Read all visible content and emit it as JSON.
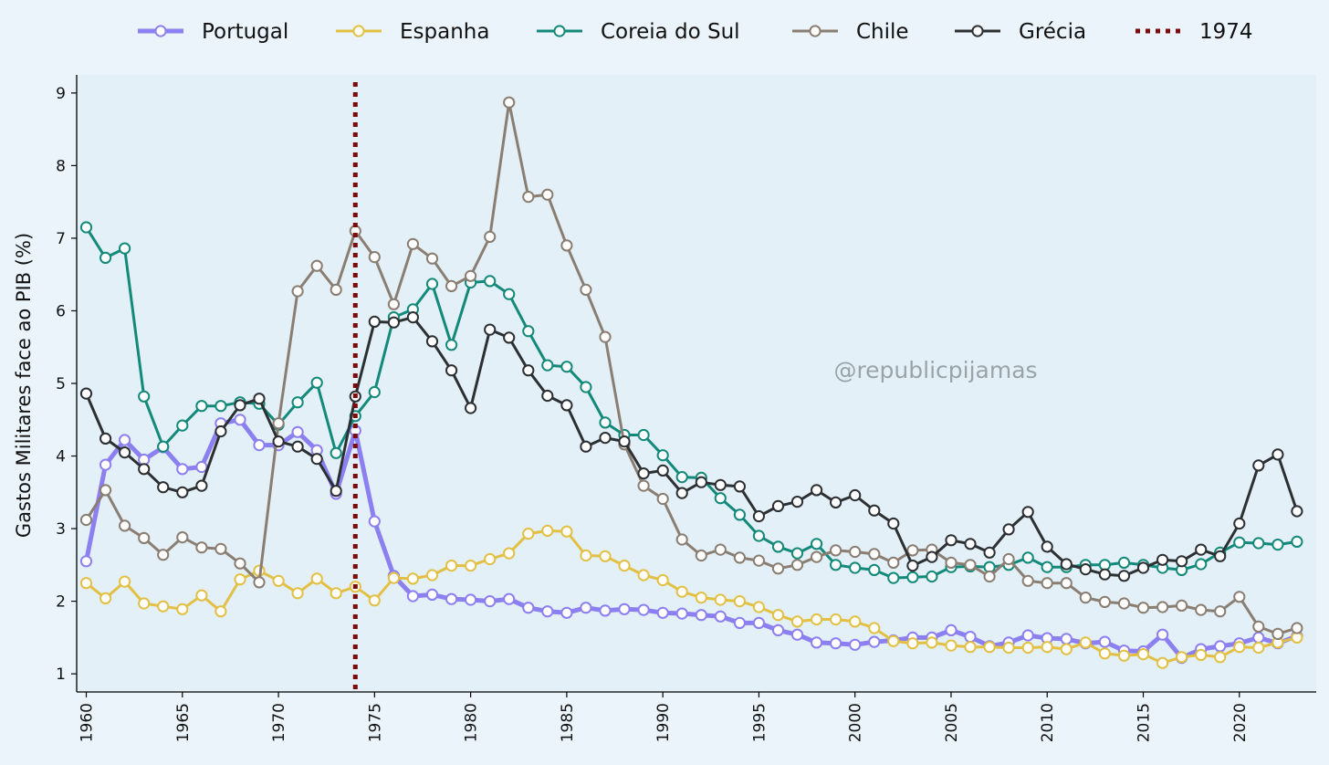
{
  "watermark": "@republicpijamas",
  "colors": {
    "page_background": "#ebf4fa",
    "plot_background": "#e3f0f8",
    "axis": "#000000",
    "reference_line": "#7a0c0c"
  },
  "chart_data": {
    "type": "line",
    "title": "",
    "xlabel": "",
    "ylabel": "Gastos Militares face ao PIB (%)",
    "xlim": [
      1959.5,
      2024
    ],
    "ylim": [
      0.75,
      9.25
    ],
    "x_ticks": [
      1960,
      1965,
      1970,
      1975,
      1980,
      1985,
      1990,
      1995,
      2000,
      2005,
      2010,
      2015,
      2020
    ],
    "y_ticks": [
      1,
      2,
      3,
      4,
      5,
      6,
      7,
      8,
      9
    ],
    "grid": false,
    "legend_position": "top-center",
    "x": [
      1960,
      1961,
      1962,
      1963,
      1964,
      1965,
      1966,
      1967,
      1968,
      1969,
      1970,
      1971,
      1972,
      1973,
      1974,
      1975,
      1976,
      1977,
      1978,
      1979,
      1980,
      1981,
      1982,
      1983,
      1984,
      1985,
      1986,
      1987,
      1988,
      1989,
      1990,
      1991,
      1992,
      1993,
      1994,
      1995,
      1996,
      1997,
      1998,
      1999,
      2000,
      2001,
      2002,
      2003,
      2004,
      2005,
      2006,
      2007,
      2008,
      2009,
      2010,
      2011,
      2012,
      2013,
      2014,
      2015,
      2016,
      2017,
      2018,
      2019,
      2020,
      2021,
      2022,
      2023
    ],
    "series": [
      {
        "name": "Portugal",
        "color": "#8c7ff0",
        "line_width": 5,
        "values": [
          2.55,
          3.88,
          4.22,
          3.95,
          4.12,
          3.82,
          3.85,
          4.45,
          4.5,
          4.15,
          4.15,
          4.33,
          4.08,
          3.48,
          4.35,
          3.1,
          2.35,
          2.07,
          2.09,
          2.03,
          2.02,
          2.0,
          2.03,
          1.91,
          1.86,
          1.84,
          1.91,
          1.87,
          1.89,
          1.88,
          1.84,
          1.83,
          1.81,
          1.79,
          1.7,
          1.7,
          1.6,
          1.54,
          1.43,
          1.42,
          1.4,
          1.44,
          1.46,
          1.5,
          1.5,
          1.6,
          1.51,
          1.38,
          1.43,
          1.53,
          1.49,
          1.48,
          1.42,
          1.44,
          1.32,
          1.31,
          1.54,
          1.22,
          1.34,
          1.38,
          1.42,
          1.5,
          1.42,
          1.52
        ]
      },
      {
        "name": "Espanha",
        "color": "#e2c044",
        "line_width": 3,
        "values": [
          2.25,
          2.04,
          2.27,
          1.97,
          1.93,
          1.89,
          2.08,
          1.86,
          2.3,
          2.42,
          2.28,
          2.11,
          2.31,
          2.11,
          2.2,
          2.01,
          2.32,
          2.31,
          2.36,
          2.49,
          2.49,
          2.58,
          2.66,
          2.93,
          2.97,
          2.96,
          2.63,
          2.62,
          2.49,
          2.36,
          2.29,
          2.13,
          2.05,
          2.02,
          2.0,
          1.92,
          1.81,
          1.72,
          1.75,
          1.75,
          1.72,
          1.63,
          1.45,
          1.42,
          1.43,
          1.39,
          1.37,
          1.37,
          1.36,
          1.36,
          1.37,
          1.34,
          1.43,
          1.28,
          1.25,
          1.27,
          1.15,
          1.23,
          1.26,
          1.23,
          1.37,
          1.36,
          1.43,
          1.5
        ]
      },
      {
        "name": "Coreia do Sul",
        "color": "#13897a",
        "line_width": 3,
        "values": [
          7.15,
          6.73,
          6.86,
          4.82,
          4.13,
          4.42,
          4.69,
          4.69,
          4.74,
          4.72,
          4.43,
          4.74,
          5.01,
          4.04,
          4.55,
          4.88,
          5.91,
          6.02,
          6.37,
          5.53,
          6.39,
          6.41,
          6.23,
          5.72,
          5.25,
          5.23,
          4.95,
          4.46,
          4.29,
          4.29,
          4.01,
          3.71,
          3.7,
          3.42,
          3.19,
          2.9,
          2.75,
          2.66,
          2.79,
          2.5,
          2.46,
          2.43,
          2.32,
          2.33,
          2.34,
          2.47,
          2.48,
          2.47,
          2.5,
          2.6,
          2.47,
          2.47,
          2.5,
          2.5,
          2.53,
          2.5,
          2.46,
          2.43,
          2.51,
          2.67,
          2.81,
          2.8,
          2.78,
          2.82
        ]
      },
      {
        "name": "Chile",
        "color": "#8a7e72",
        "line_width": 3,
        "values": [
          3.12,
          3.53,
          3.04,
          2.87,
          2.64,
          2.88,
          2.74,
          2.72,
          2.52,
          2.26,
          4.45,
          6.27,
          6.62,
          6.29,
          7.1,
          6.74,
          6.09,
          6.92,
          6.72,
          6.34,
          6.48,
          7.02,
          8.87,
          7.57,
          7.6,
          6.9,
          6.29,
          5.64,
          4.16,
          3.59,
          3.41,
          2.85,
          2.63,
          2.71,
          2.6,
          2.56,
          2.45,
          2.5,
          2.61,
          2.7,
          2.68,
          2.65,
          2.53,
          2.7,
          2.71,
          2.53,
          2.5,
          2.34,
          2.58,
          2.28,
          2.25,
          2.25,
          2.05,
          1.99,
          1.97,
          1.91,
          1.92,
          1.94,
          1.88,
          1.86,
          2.06,
          1.65,
          1.55,
          1.63
        ]
      },
      {
        "name": "Grécia",
        "color": "#2d3033",
        "line_width": 3,
        "values": [
          4.86,
          4.24,
          4.05,
          3.82,
          3.57,
          3.5,
          3.59,
          4.34,
          4.7,
          4.79,
          4.2,
          4.13,
          3.96,
          3.52,
          4.82,
          5.85,
          5.84,
          5.91,
          5.58,
          5.18,
          4.66,
          5.74,
          5.63,
          5.18,
          4.83,
          4.7,
          4.13,
          4.25,
          4.2,
          3.76,
          3.8,
          3.49,
          3.64,
          3.6,
          3.58,
          3.17,
          3.31,
          3.37,
          3.53,
          3.36,
          3.46,
          3.25,
          3.07,
          2.49,
          2.61,
          2.84,
          2.79,
          2.67,
          2.99,
          3.23,
          2.75,
          2.51,
          2.44,
          2.37,
          2.35,
          2.46,
          2.57,
          2.55,
          2.71,
          2.62,
          3.07,
          3.87,
          4.02,
          3.24
        ]
      }
    ],
    "reference_lines": [
      {
        "name": "1974",
        "x": 1974,
        "style": "dotted",
        "color": "#7a0c0c"
      }
    ]
  }
}
